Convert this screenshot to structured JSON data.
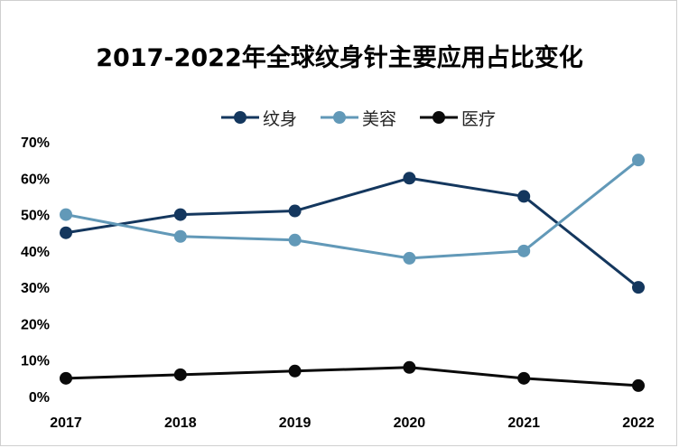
{
  "chart_data": {
    "type": "line",
    "title": "2017-2022年全球纹身针主要应用占比变化",
    "categories": [
      "2017",
      "2018",
      "2019",
      "2020",
      "2021",
      "2022"
    ],
    "y_ticks": [
      "0%",
      "10%",
      "20%",
      "30%",
      "40%",
      "50%",
      "60%",
      "70%"
    ],
    "ylim": [
      0,
      70
    ],
    "legend_position": "top",
    "grid": false,
    "series": [
      {
        "name": "纹身",
        "color": "#14375e",
        "values": [
          45,
          50,
          51,
          60,
          55,
          30
        ]
      },
      {
        "name": "美容",
        "color": "#6299b8",
        "values": [
          50,
          44,
          43,
          38,
          40,
          65
        ]
      },
      {
        "name": "医疗",
        "color": "#0a0a0a",
        "values": [
          5,
          6,
          7,
          8,
          5,
          3
        ]
      }
    ]
  }
}
